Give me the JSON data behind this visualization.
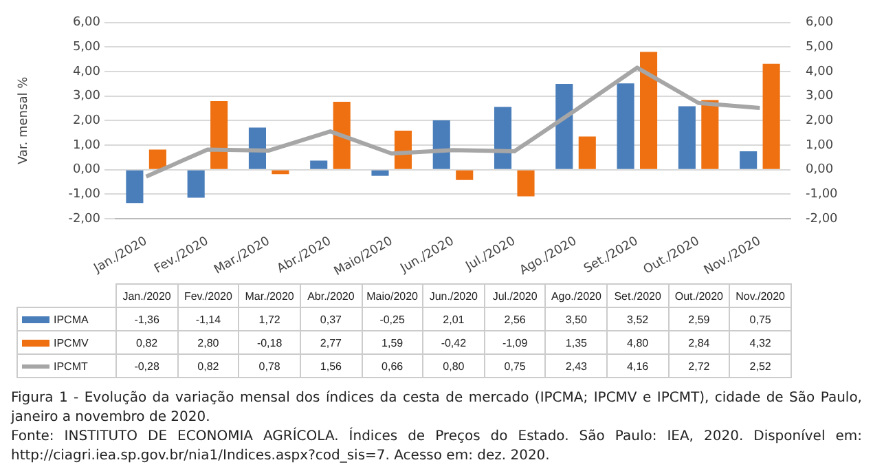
{
  "chart_data": {
    "type": "bar",
    "ylabel": "Var. mensal %",
    "categories": [
      "Jan./2020",
      "Fev./2020",
      "Mar./2020",
      "Abr./2020",
      "Maio/2020",
      "Jun./2020",
      "Jul./2020",
      "Ago./2020",
      "Set./2020",
      "Out./2020",
      "Nov./2020"
    ],
    "series": [
      {
        "name": "IPCMA",
        "color": "#4a7ebb",
        "values": [
          -1.36,
          -1.14,
          1.72,
          0.37,
          -0.25,
          2.01,
          2.56,
          3.5,
          3.52,
          2.59,
          0.75
        ],
        "value_labels": [
          "-1,36",
          "-1,14",
          "1,72",
          "0,37",
          "-0,25",
          "2,01",
          "2,56",
          "3,50",
          "3,52",
          "2,59",
          "0,75"
        ]
      },
      {
        "name": "IPCMV",
        "color": "#ee7011",
        "values": [
          0.82,
          2.8,
          -0.18,
          2.77,
          1.59,
          -0.42,
          -1.09,
          1.35,
          4.8,
          2.84,
          4.32
        ],
        "value_labels": [
          "0,82",
          "2,80",
          "-0,18",
          "2,77",
          "1,59",
          "-0,42",
          "-1,09",
          "1,35",
          "4,80",
          "2,84",
          "4,32"
        ]
      },
      {
        "name": "IPCMT",
        "type": "line",
        "color": "#a6a6a6",
        "values": [
          -0.28,
          0.82,
          0.78,
          1.56,
          0.66,
          0.8,
          0.75,
          2.43,
          4.16,
          2.72,
          2.52
        ],
        "value_labels": [
          "-0,28",
          "0,82",
          "0,78",
          "1,56",
          "0,66",
          "0,80",
          "0,75",
          "2,43",
          "4,16",
          "2,72",
          "2,52"
        ]
      }
    ],
    "ylim": [
      -2,
      6
    ],
    "yticks": [
      {
        "value": -2,
        "label": "-2,00"
      },
      {
        "value": -1,
        "label": "-1,00"
      },
      {
        "value": 0,
        "label": "0,00"
      },
      {
        "value": 1,
        "label": "1,00"
      },
      {
        "value": 2,
        "label": "2,00"
      },
      {
        "value": 3,
        "label": "3,00"
      },
      {
        "value": 4,
        "label": "4,00"
      },
      {
        "value": 5,
        "label": "5,00"
      },
      {
        "value": 6,
        "label": "6,00"
      }
    ],
    "y2lim": [
      -2,
      6
    ],
    "y2ticks": [
      {
        "value": -2,
        "label": "-2,00"
      },
      {
        "value": -1,
        "label": "-1,00"
      },
      {
        "value": 0,
        "label": "0,00"
      },
      {
        "value": 1,
        "label": "1,00"
      },
      {
        "value": 2,
        "label": "2,00"
      },
      {
        "value": 3,
        "label": "3,00"
      },
      {
        "value": 4,
        "label": "4,00"
      },
      {
        "value": 5,
        "label": "5,00"
      },
      {
        "value": 6,
        "label": "6,00"
      }
    ],
    "grid": "y",
    "legend": "bottom",
    "marker": "none",
    "annotations": [
      "Figura 1 - Evolução da variação mensal dos índices da cesta de mercado (IPCMA; IPCMV e IPCMT), cidade de São Paulo, janeiro a novembro de 2020.",
      "Fonte: INSTITUTO DE ECONOMIA AGRÍCOLA. Índices de Preços do Estado. São Paulo: IEA, 2020. Disponível em: http://ciagri.iea.sp.gov.br/nia1/Indices.aspx?cod_sis=7. Acesso em: dez. 2020."
    ]
  }
}
